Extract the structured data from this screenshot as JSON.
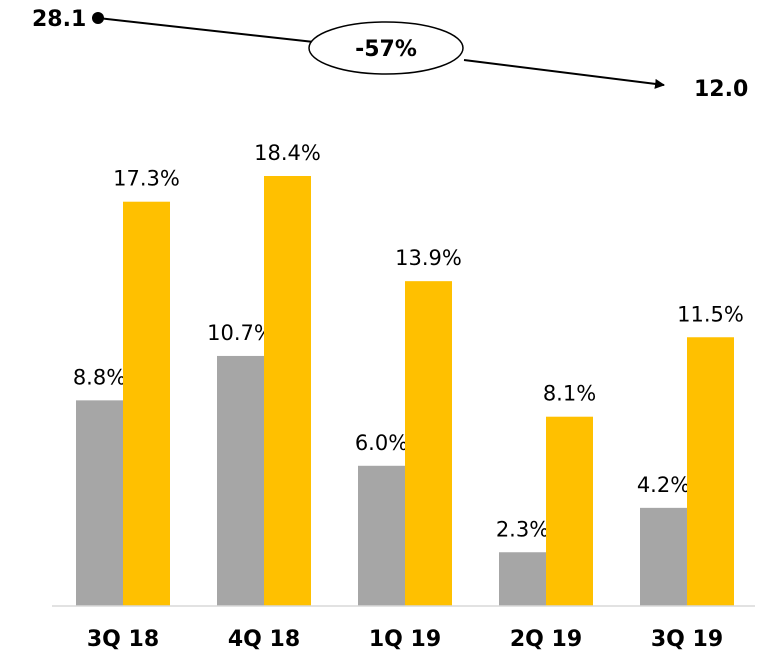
{
  "chart_data": {
    "type": "bar",
    "categories": [
      "3Q 18",
      "4Q 18",
      "1Q 19",
      "2Q 19",
      "3Q 19"
    ],
    "series": [
      {
        "values": [
          8.8,
          10.7,
          6.0,
          2.3,
          4.2
        ],
        "labels": [
          "8.8%",
          "10.7%",
          "6.0%",
          "2.3%",
          "4.2%"
        ]
      },
      {
        "values": [
          17.3,
          18.4,
          13.9,
          8.1,
          11.5
        ],
        "labels": [
          "17.3%",
          "18.4%",
          "13.9%",
          "8.1%",
          "11.5%"
        ]
      }
    ],
    "ylim": [
      0,
      18.4
    ],
    "grid": false,
    "colors": [
      "#a6a6a6",
      "#ffc000"
    ],
    "annotation": {
      "start_label": "28.1",
      "end_label": "12.0",
      "change_label": "-57%"
    }
  }
}
